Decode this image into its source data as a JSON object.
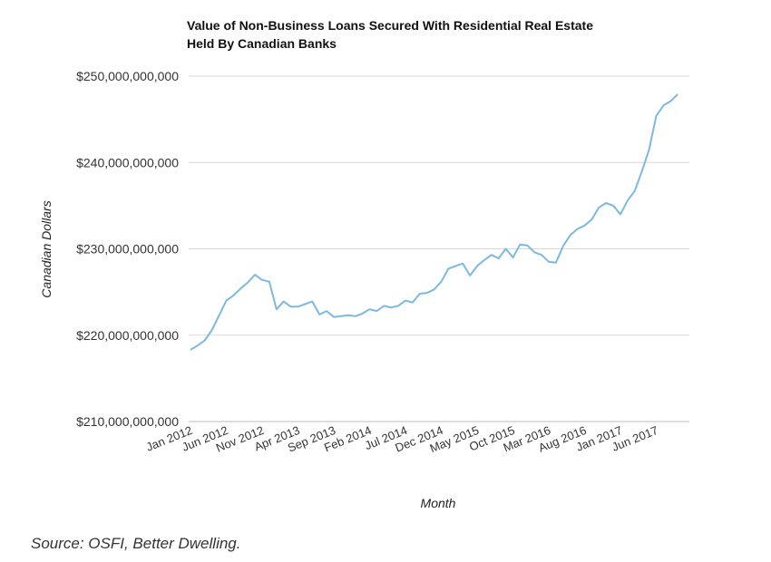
{
  "chart_data": {
    "type": "line",
    "title_lines": [
      "Value of Non-Business Loans Secured With Residential Real Estate",
      "Held By Canadian Banks"
    ],
    "xlabel": "Month",
    "ylabel": "Canadian Dollars",
    "ylim": [
      210000000000,
      250000000000
    ],
    "y_ticks": [
      210000000000,
      220000000000,
      230000000000,
      240000000000,
      250000000000
    ],
    "y_tick_labels": [
      "$210,000,000,000",
      "$220,000,000,000",
      "$230,000,000,000",
      "$240,000,000,000",
      "$250,000,000,000"
    ],
    "x_ticks": [
      {
        "label": "Jan 2012",
        "month": 0
      },
      {
        "label": "Jun 2012",
        "month": 5
      },
      {
        "label": "Nov 2012",
        "month": 10
      },
      {
        "label": "Apr 2013",
        "month": 15
      },
      {
        "label": "Sep 2013",
        "month": 20
      },
      {
        "label": "Feb 2014",
        "month": 25
      },
      {
        "label": "Jul 2014",
        "month": 30
      },
      {
        "label": "Dec 2014",
        "month": 35
      },
      {
        "label": "May 2015",
        "month": 40
      },
      {
        "label": "Oct 2015",
        "month": 45
      },
      {
        "label": "Mar 2016",
        "month": 50
      },
      {
        "label": "Aug 2016",
        "month": 55
      },
      {
        "label": "Jan 2017",
        "month": 60
      },
      {
        "label": "Jun 2017",
        "month": 65
      }
    ],
    "grid": true,
    "line_color": "#7cb9e0",
    "series": [
      {
        "values": [
          218.3,
          218.8,
          219.4,
          220.6,
          222.3,
          224.0,
          224.6,
          225.4,
          226.1,
          227.0,
          226.4,
          226.2,
          223.0,
          223.9,
          223.3,
          223.3,
          223.6,
          223.9,
          222.4,
          222.8,
          222.1,
          222.2,
          222.3,
          222.2,
          222.5,
          223.0,
          222.8,
          223.4,
          223.2,
          223.4,
          224.0,
          223.8,
          224.8,
          224.9,
          225.3,
          226.2,
          227.7,
          228.0,
          228.3,
          226.9,
          228.0,
          228.7,
          229.3,
          228.9,
          230.0,
          229.0,
          230.5,
          230.4,
          229.6,
          229.3,
          228.5,
          228.4,
          230.3,
          231.6,
          232.3,
          232.7,
          233.4,
          234.8,
          235.3,
          235.0,
          234.0,
          235.6,
          236.7,
          239.0,
          241.5,
          245.4,
          246.6,
          247.1,
          247.9
        ]
      }
    ]
  },
  "source_text": "Source: OSFI, Better Dwelling."
}
